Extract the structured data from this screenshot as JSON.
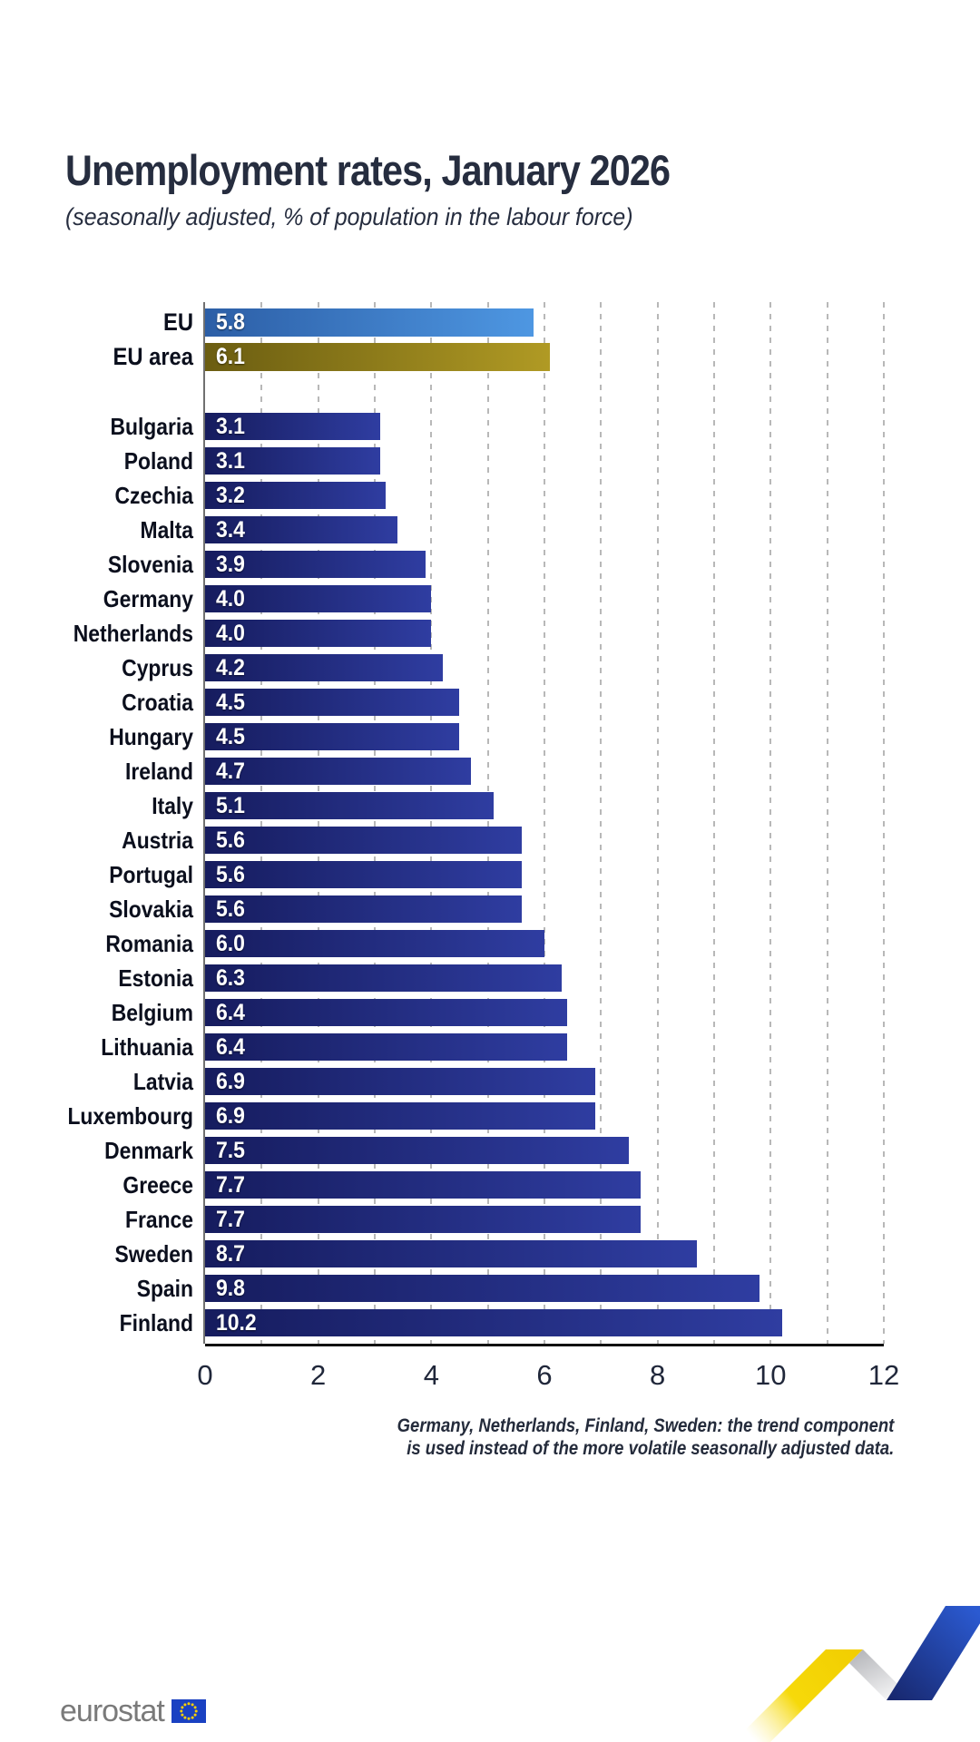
{
  "header": {
    "title": "Unemployment rates, January 2026",
    "subtitle": "(seasonally adjusted, % of population in the labour force)"
  },
  "footnote": {
    "line1": "Germany, Netherlands, Finland, Sweden: the trend component",
    "line2": "is used instead of the more volatile seasonally adjusted data."
  },
  "logo": {
    "text": "eurostat"
  },
  "colors": {
    "title_text": "#262d3f",
    "eu_bar_start": "#2c5ea6",
    "eu_bar_end": "#4e97e2",
    "eu_area_bar_start": "#6b5d11",
    "eu_area_bar_end": "#b09a24",
    "country_bar_start": "#161c5e",
    "country_bar_end": "#2f3da1",
    "gridline": "#b8b8b8",
    "flag_blue": "#1a41c2",
    "flag_star_yellow": "#ffd100",
    "ribbon_yellow": "#f2ce00",
    "ribbon_blue": "#2b5ad1",
    "ribbon_gray": "#b6b7bb"
  },
  "chart_data": {
    "type": "bar",
    "orientation": "horizontal",
    "title": "Unemployment rates, January 2026",
    "subtitle": "(seasonally adjusted, % of population in the labour force)",
    "xlabel": "",
    "ylabel": "",
    "xlim": [
      0,
      12
    ],
    "x_ticks": [
      0,
      2,
      4,
      6,
      8,
      10,
      12
    ],
    "grid": "dashed vertical, 1-unit spacing",
    "legend": "none",
    "aggregates": [
      {
        "label": "EU",
        "value": 5.8
      },
      {
        "label": "EU area",
        "value": 6.1
      }
    ],
    "categories": [
      "Bulgaria",
      "Poland",
      "Czechia",
      "Malta",
      "Slovenia",
      "Germany",
      "Netherlands",
      "Cyprus",
      "Croatia",
      "Hungary",
      "Ireland",
      "Italy",
      "Austria",
      "Portugal",
      "Slovakia",
      "Romania",
      "Estonia",
      "Belgium",
      "Lithuania",
      "Latvia",
      "Luxembourg",
      "Denmark",
      "Greece",
      "France",
      "Sweden",
      "Spain",
      "Finland"
    ],
    "values": [
      3.1,
      3.1,
      3.2,
      3.4,
      3.9,
      4.0,
      4.0,
      4.2,
      4.5,
      4.5,
      4.7,
      5.1,
      5.6,
      5.6,
      5.6,
      6.0,
      6.3,
      6.4,
      6.4,
      6.9,
      6.9,
      7.5,
      7.7,
      7.7,
      8.7,
      9.8,
      10.2
    ]
  }
}
